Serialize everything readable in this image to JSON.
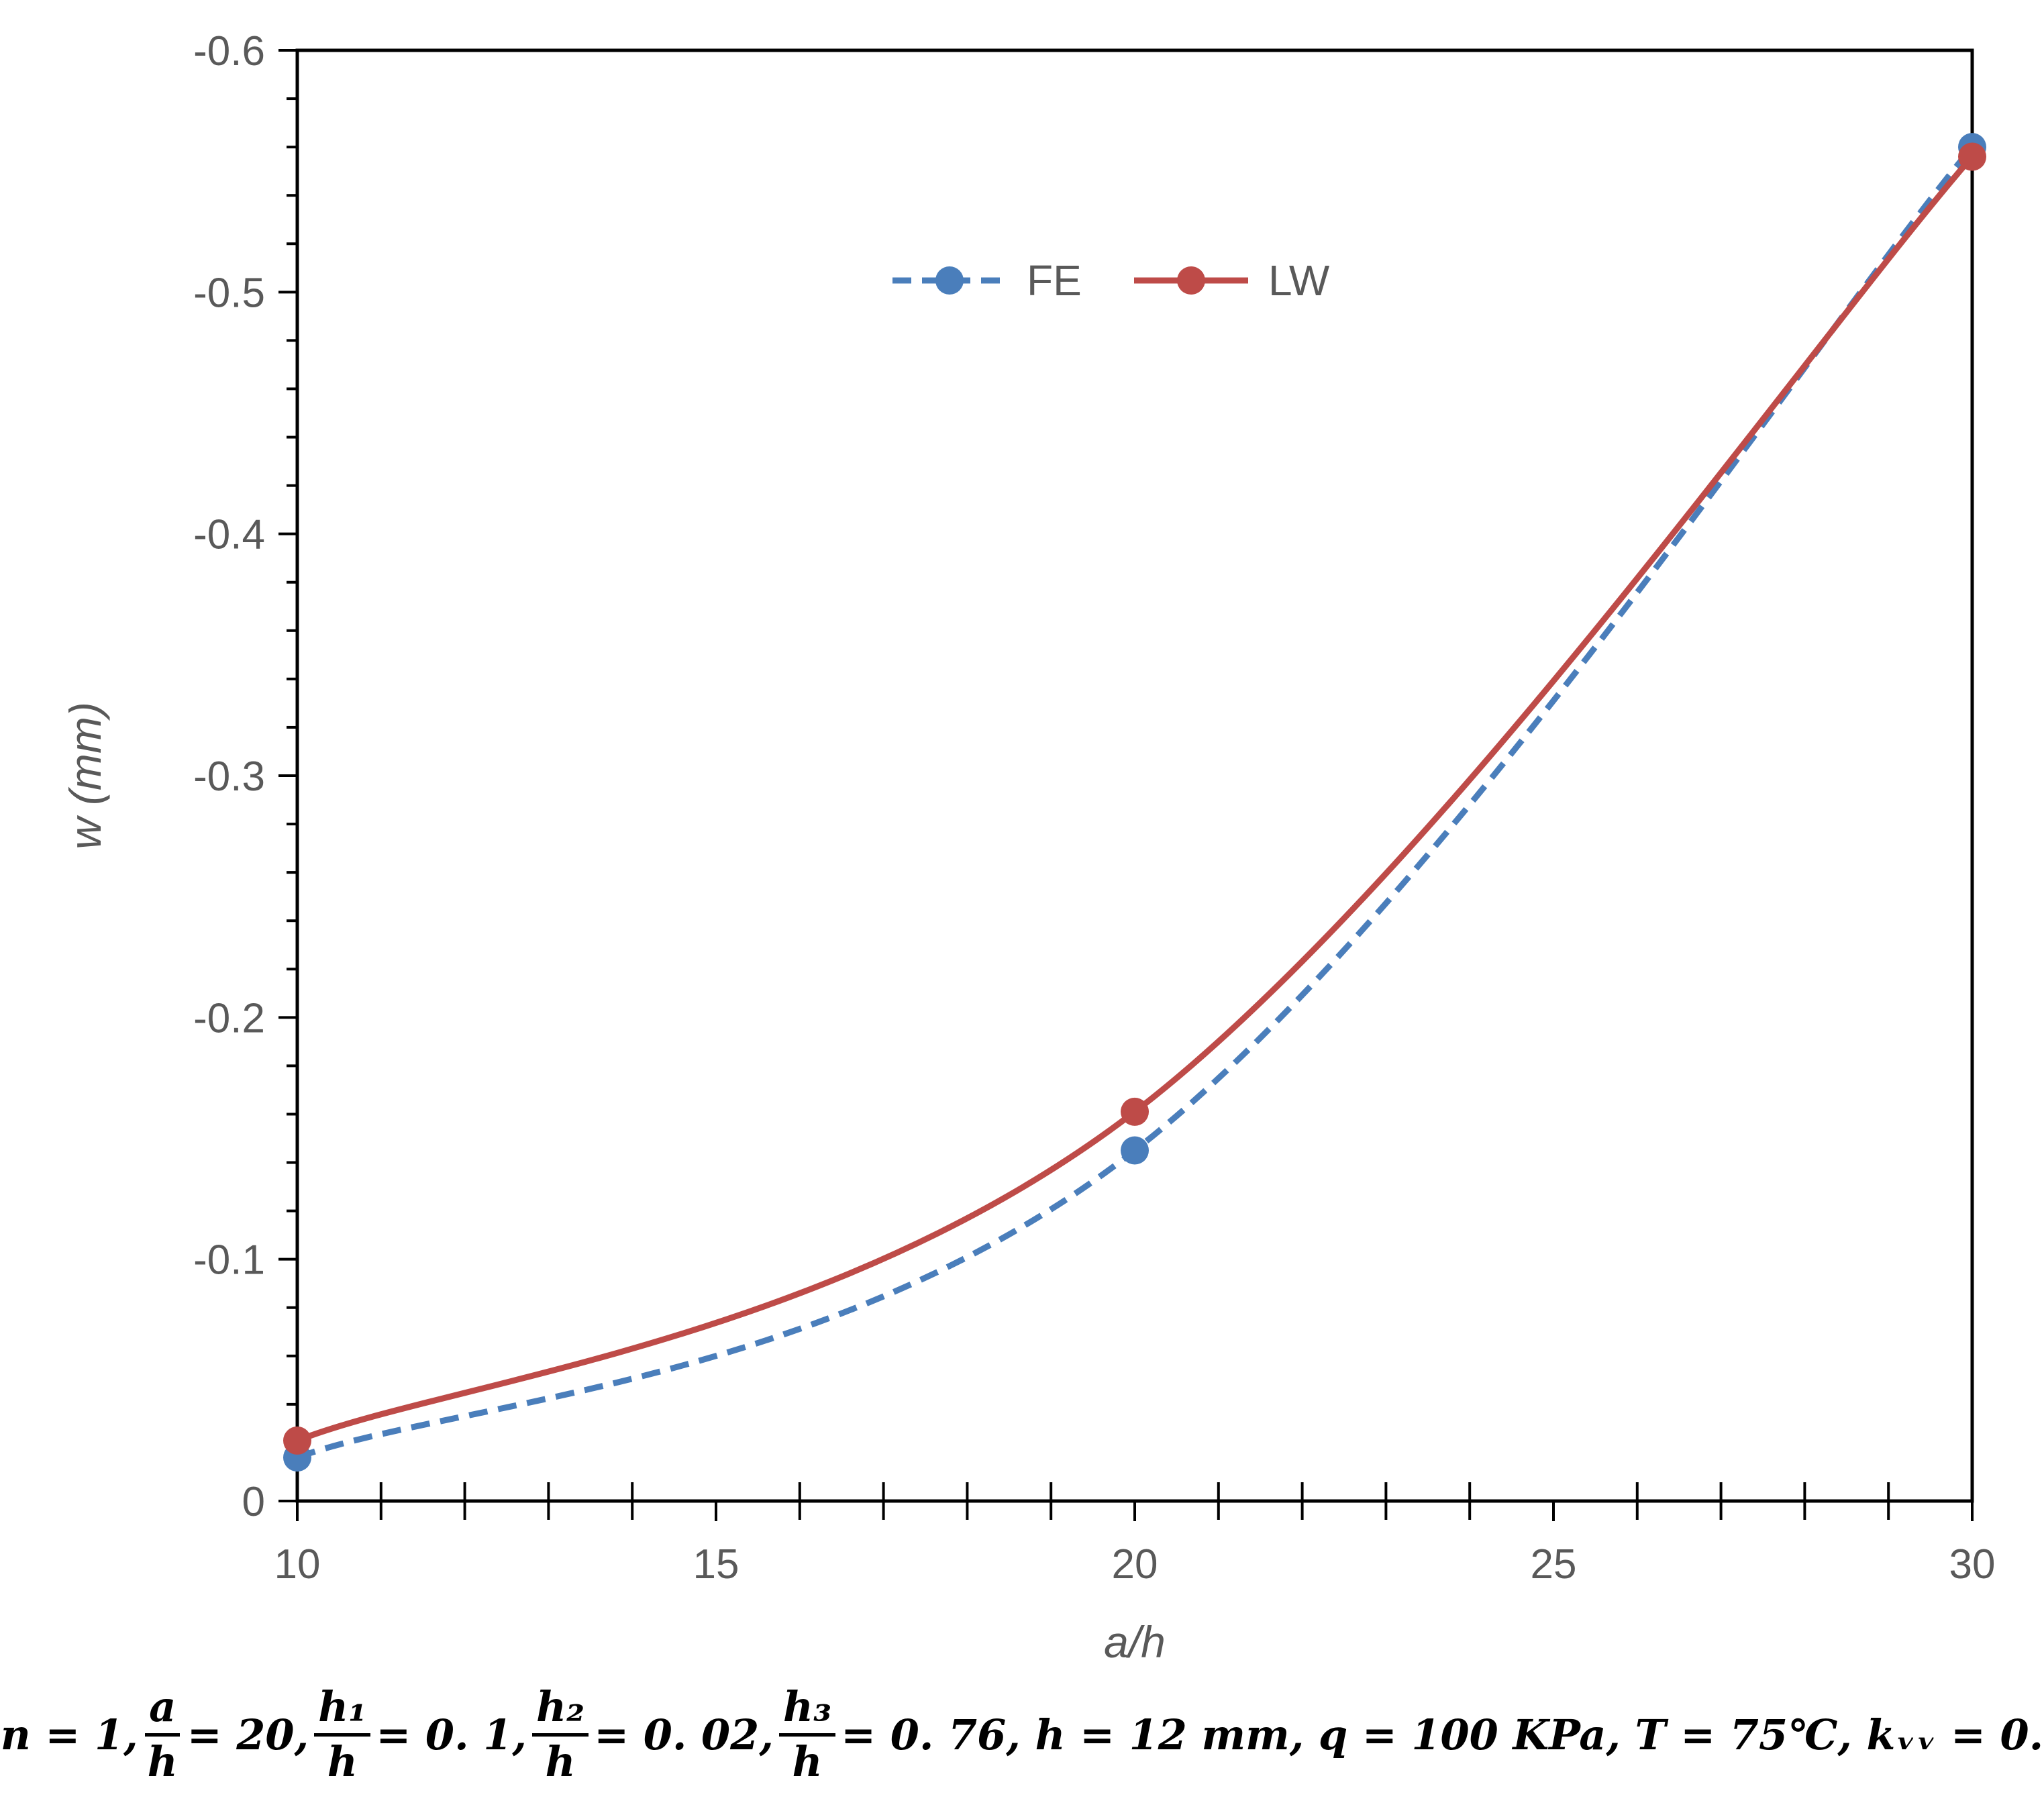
{
  "chart_data": {
    "type": "line",
    "xlabel": "a/h",
    "ylabel": "w (mm)",
    "xlim": [
      10,
      30
    ],
    "ylim": [
      0,
      -0.6
    ],
    "y_axis_inverted": true,
    "x_ticks": [
      10,
      15,
      20,
      25,
      30
    ],
    "x_tick_labels": [
      "10",
      "15",
      "20",
      "25",
      "30"
    ],
    "y_ticks": [
      0,
      -0.1,
      -0.2,
      -0.3,
      -0.4,
      -0.5,
      -0.6
    ],
    "y_tick_labels": [
      "0",
      "-0.1",
      "-0.2",
      "-0.3",
      "-0.4",
      "-0.5",
      "-0.6"
    ],
    "grid": false,
    "legend_position": "top-center",
    "series": [
      {
        "name": "FE",
        "x": [
          10,
          20,
          30
        ],
        "y": [
          -0.018,
          -0.145,
          -0.56
        ],
        "color": "#4A7EBB",
        "line_style": "dashed",
        "marker": "circle"
      },
      {
        "name": "LW",
        "x": [
          10,
          20,
          30
        ],
        "y": [
          -0.025,
          -0.161,
          -0.556
        ],
        "color": "#BE4B48",
        "line_style": "solid",
        "marker": "circle"
      }
    ]
  },
  "caption": {
    "n": "n = 1,",
    "r1_num": "a",
    "r1_den": "h",
    "r1_val": "= 20,",
    "r2_num": "h₁",
    "r2_den": "h",
    "r2_val": "= 0. 1,",
    "r3_num": "h₂",
    "r3_den": "h",
    "r3_val": "= 0. 02,",
    "r4_num": "h₃",
    "r4_den": "h",
    "r4_val": "= 0. 76, h = 12 mm, q = 100 KPa, T = 75℃, kᵥᵥ = 0."
  }
}
